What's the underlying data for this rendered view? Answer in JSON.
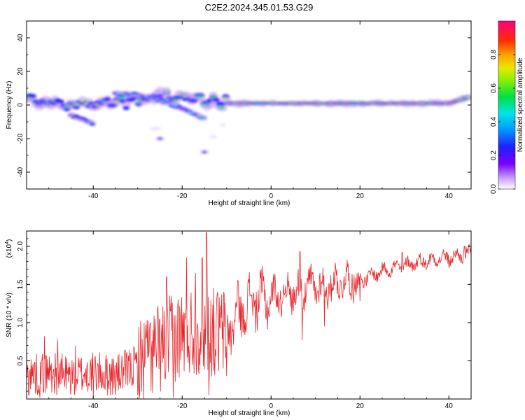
{
  "title": "C2E2.2024.345.01.53.G29",
  "chart_data": [
    {
      "type": "heatmap",
      "xlabel": "Height of straight line (km)",
      "ylabel": "Frequency (Hz)",
      "xlim": [
        -55,
        45
      ],
      "ylim": [
        -50,
        50
      ],
      "x_ticks": [
        -40,
        -20,
        0,
        20,
        40
      ],
      "y_ticks": [
        -40,
        -20,
        0,
        20,
        40
      ],
      "colorbar": {
        "label": "Normalized spectral amplitude",
        "range": [
          0.0,
          1.0
        ],
        "ticks": [
          0.0,
          0.2,
          0.4,
          0.6,
          0.8
        ],
        "tick_labels": [
          "0.0",
          "0.2",
          "0.4",
          "0.6",
          "0.8"
        ]
      },
      "ridges": [
        {
          "x": [
            -55,
            -50,
            -45,
            -40,
            -35,
            -30,
            -25,
            -20,
            -15,
            -10,
            -5,
            0,
            10,
            20,
            30,
            40,
            45
          ],
          "y": [
            3,
            1,
            0,
            1,
            2,
            3,
            5,
            4,
            3,
            1,
            1,
            1,
            1,
            1,
            1,
            1,
            5
          ]
        },
        {
          "x": [
            -35,
            -30,
            -25,
            -20,
            -15
          ],
          "y": [
            7,
            6,
            3,
            -2,
            -8
          ]
        },
        {
          "x": [
            -45,
            -40
          ],
          "y": [
            -6,
            -11
          ]
        },
        {
          "x": [
            -25
          ],
          "y": [
            -20
          ]
        },
        {
          "x": [
            -15
          ],
          "y": [
            -28
          ]
        }
      ]
    },
    {
      "type": "line",
      "xlabel": "Height of straight line (km)",
      "ylabel": "SNR (10 * v/v)",
      "y_multiplier": "(x10",
      "y_multiplier_exp": "4",
      "y_multiplier_close": ")",
      "xlim": [
        -55,
        45
      ],
      "ylim": [
        0,
        2.2
      ],
      "x_ticks": [
        -40,
        -20,
        0,
        20,
        40
      ],
      "y_ticks": [
        0.5,
        1.0,
        1.5,
        2.0
      ],
      "y_tick_labels": [
        "0.5",
        "1.0",
        "1.5",
        "2.0"
      ],
      "series_color": "#e8262a",
      "envelope_x": [
        -55,
        -50,
        -45,
        -40,
        -35,
        -30,
        -27,
        -24,
        -22,
        -20,
        -18,
        -16,
        -14,
        -12,
        -10,
        -8,
        -6,
        -4,
        -2,
        0,
        2,
        4,
        6,
        8,
        10,
        12,
        14,
        16,
        18,
        20,
        22,
        24,
        26,
        28,
        30,
        32,
        34,
        36,
        38,
        40,
        42,
        44,
        45
      ],
      "envelope_y": [
        0.3,
        0.35,
        0.3,
        0.35,
        0.3,
        0.45,
        0.6,
        0.7,
        0.8,
        0.85,
        0.9,
        0.9,
        0.9,
        0.85,
        0.9,
        1.05,
        1.2,
        1.3,
        1.3,
        1.35,
        1.35,
        1.4,
        1.4,
        1.45,
        1.5,
        1.45,
        1.5,
        1.55,
        1.55,
        1.55,
        1.6,
        1.65,
        1.7,
        1.72,
        1.75,
        1.78,
        1.8,
        1.82,
        1.85,
        1.85,
        1.87,
        1.9,
        1.9
      ],
      "peaks": [
        {
          "x": -55,
          "y": 0.62
        },
        {
          "x": -51,
          "y": 0.82
        },
        {
          "x": -48,
          "y": 0.78
        },
        {
          "x": -44,
          "y": 0.7
        },
        {
          "x": -33,
          "y": 0.62
        },
        {
          "x": -28,
          "y": 0.82
        },
        {
          "x": -25,
          "y": 1.05
        },
        {
          "x": -23.5,
          "y": 1.6
        },
        {
          "x": -22,
          "y": 2.05
        },
        {
          "x": -19,
          "y": 1.85
        },
        {
          "x": -17,
          "y": 1.65
        },
        {
          "x": -15.5,
          "y": 1.85
        },
        {
          "x": -14.5,
          "y": 2.18
        },
        {
          "x": -12,
          "y": 1.4
        },
        {
          "x": -7.5,
          "y": 1.55
        },
        {
          "x": 6.5,
          "y": 1.93
        },
        {
          "x": 11,
          "y": 1.65
        },
        {
          "x": 29.5,
          "y": 1.92
        },
        {
          "x": 43.5,
          "y": 2.0
        }
      ],
      "troughs": [
        {
          "x": -52,
          "y": 0.02
        },
        {
          "x": -40,
          "y": 0.03
        },
        {
          "x": -30,
          "y": 0.05
        },
        {
          "x": -22,
          "y": 0.02
        },
        {
          "x": -14,
          "y": 0.05
        },
        {
          "x": -10,
          "y": 0.3
        },
        {
          "x": 7,
          "y": 0.77
        },
        {
          "x": 12,
          "y": 0.95
        },
        {
          "x": 20,
          "y": 1.28
        },
        {
          "x": 40,
          "y": 1.72
        }
      ]
    }
  ]
}
